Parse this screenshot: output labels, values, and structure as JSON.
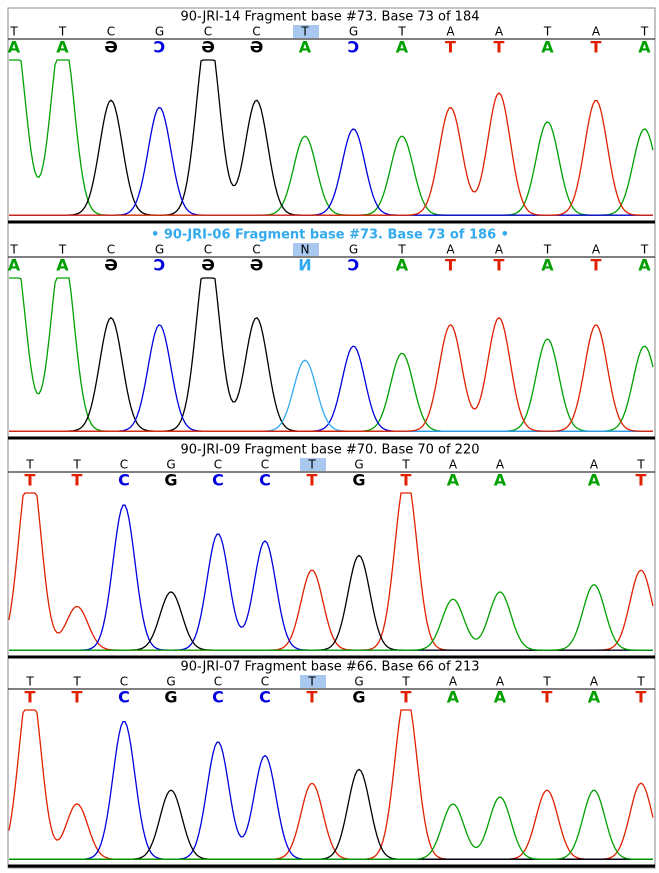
{
  "base_colors": {
    "A": "#00a000",
    "T": "#e02000",
    "C": "#0000e0",
    "G": "#000000",
    "Ә": "#000000",
    "Ɔ": "#0000e0",
    "И": "#33aaee"
  },
  "panels": [
    {
      "title": "90-JRI-14 Fragment base #73. Base 73 of 184",
      "reference": [
        "T",
        "T",
        "C",
        "G",
        "C",
        "C",
        "T",
        "G",
        "T",
        "A",
        "A",
        "T",
        "A",
        "T"
      ],
      "calls": [
        "A",
        "A",
        "Ә",
        "Ɔ",
        "Ә",
        "Ә",
        "A",
        "Ɔ",
        "A",
        "T",
        "T",
        "A",
        "T",
        "A"
      ]
    },
    {
      "title": "• 90-JRI-06 Fragment base #73. Base 73 of 186 •",
      "reference": [
        "T",
        "T",
        "C",
        "G",
        "C",
        "C",
        "N",
        "G",
        "T",
        "A",
        "A",
        "T",
        "A",
        "T"
      ],
      "calls": [
        "A",
        "A",
        "Ә",
        "Ɔ",
        "Ә",
        "Ә",
        "И",
        "Ɔ",
        "A",
        "T",
        "T",
        "A",
        "T",
        "A"
      ]
    },
    {
      "title": "90-JRI-09 Fragment base #70. Base 70 of 220",
      "reference": [
        "T",
        "T",
        "C",
        "G",
        "C",
        "C",
        "T",
        "G",
        "T",
        "A",
        "A",
        null,
        "A",
        "T"
      ],
      "calls": [
        "T",
        "T",
        "C",
        "G",
        "C",
        "C",
        "T",
        "G",
        "T",
        "A",
        "A",
        null,
        "A",
        "T"
      ]
    },
    {
      "title": "90-JRI-07 Fragment base #66. Base 66 of 213",
      "reference": [
        "T",
        "T",
        "C",
        "G",
        "C",
        "C",
        "T",
        "G",
        "T",
        "A",
        "A",
        "T",
        "A",
        "T"
      ],
      "calls": [
        "T",
        "T",
        "C",
        "G",
        "C",
        "C",
        "T",
        "G",
        "T",
        "A",
        "A",
        "T",
        "A",
        "T"
      ]
    }
  ]
}
